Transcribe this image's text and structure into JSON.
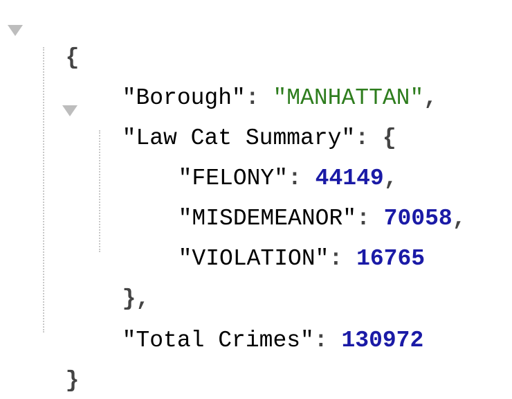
{
  "json_viewer": {
    "root_open": "{",
    "root_close": "}",
    "entries": {
      "borough": {
        "key": "\"Borough\"",
        "sep": ": ",
        "value": "\"MANHATTAN\"",
        "trail": ","
      },
      "law_cat_summary": {
        "key": "\"Law Cat Summary\"",
        "sep": ": ",
        "open": "{",
        "close": "},",
        "items": [
          {
            "key": "\"FELONY\"",
            "sep": ": ",
            "value": "44149",
            "trail": ","
          },
          {
            "key": "\"MISDEMEANOR\"",
            "sep": ": ",
            "value": "70058",
            "trail": ","
          },
          {
            "key": "\"VIOLATION\"",
            "sep": ": ",
            "value": "16765",
            "trail": ""
          }
        ]
      },
      "total_crimes": {
        "key": "\"Total Crimes\"",
        "sep": ": ",
        "value": "130972"
      }
    }
  }
}
